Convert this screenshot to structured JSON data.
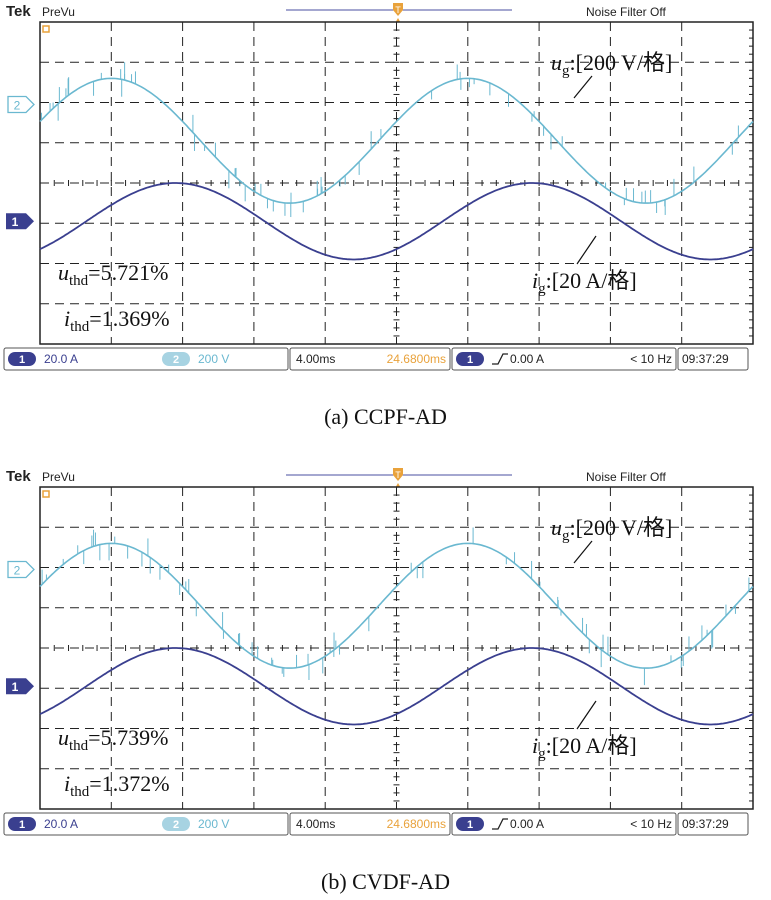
{
  "chart_data": [
    {
      "type": "line",
      "caption": "(a) CCPF-AD",
      "header": {
        "brand": "Tek",
        "mode": "PreVu",
        "filter": "Noise Filter Off"
      },
      "grid": true,
      "divisions": {
        "x": 10,
        "y": 8
      },
      "x_period_div": 5,
      "series": [
        {
          "name": "ug",
          "channel": "2",
          "scale_label": "[200 V/格]",
          "color": "#6ab8d0",
          "offset_div": 2.95,
          "amplitude_div": 1.55,
          "phase_div": 1.0,
          "noise": true
        },
        {
          "name": "ig",
          "channel": "1",
          "scale_label": "[20 A/格]",
          "color": "#3a3f8f",
          "offset_div": 4.95,
          "amplitude_div": 0.95,
          "phase_div": 1.9,
          "noise": false
        }
      ],
      "annotations": [
        {
          "var": "u",
          "sub": "thd",
          "value": "=5.721%"
        },
        {
          "var": "i",
          "sub": "thd",
          "value": "=1.369%"
        }
      ],
      "status": {
        "ch1": "1",
        "ch1_scale": "20.0 A",
        "ch2": "2",
        "ch2_scale": "200 V",
        "timebase": "4.00ms",
        "position": "24.6800ms",
        "trig_ch": "1",
        "trig_level": "0.00 A",
        "freq": "< 10 Hz",
        "clock": "09:37:29"
      }
    },
    {
      "type": "line",
      "caption": "(b) CVDF-AD",
      "header": {
        "brand": "Tek",
        "mode": "PreVu",
        "filter": "Noise Filter Off"
      },
      "grid": true,
      "divisions": {
        "x": 10,
        "y": 8
      },
      "x_period_div": 5,
      "series": [
        {
          "name": "ug",
          "channel": "2",
          "scale_label": "[200 V/格]",
          "color": "#6ab8d0",
          "offset_div": 2.95,
          "amplitude_div": 1.55,
          "phase_div": 1.0,
          "noise": true
        },
        {
          "name": "ig",
          "channel": "1",
          "scale_label": "[20 A/格]",
          "color": "#3a3f8f",
          "offset_div": 4.95,
          "amplitude_div": 0.95,
          "phase_div": 1.9,
          "noise": false
        }
      ],
      "annotations": [
        {
          "var": "u",
          "sub": "thd",
          "value": "=5.739%"
        },
        {
          "var": "i",
          "sub": "thd",
          "value": "=1.372%"
        }
      ],
      "status": {
        "ch1": "1",
        "ch1_scale": "20.0 A",
        "ch2": "2",
        "ch2_scale": "200 V",
        "timebase": "4.00ms",
        "position": "24.6800ms",
        "trig_ch": "1",
        "trig_level": "0.00 A",
        "freq": "< 10 Hz",
        "clock": "09:37:29"
      }
    }
  ]
}
